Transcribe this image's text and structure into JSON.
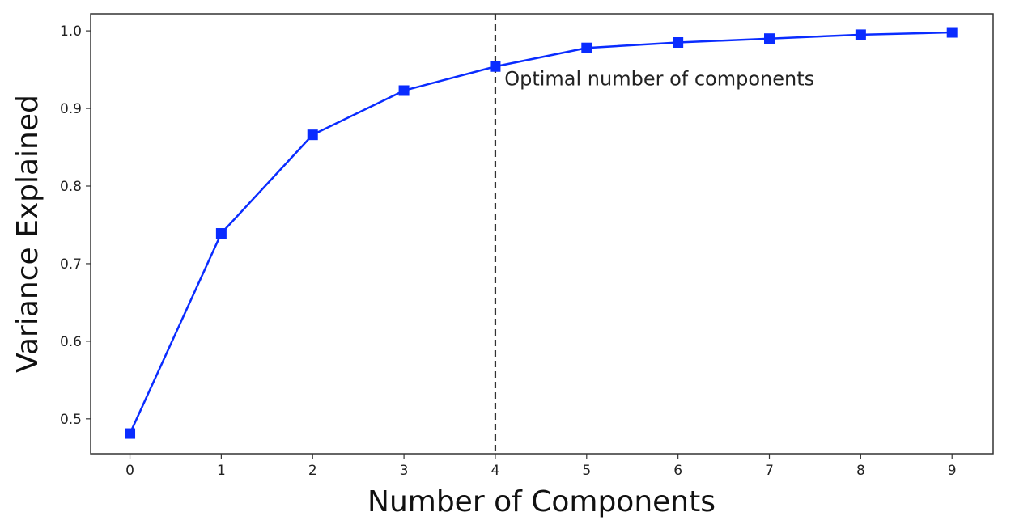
{
  "chart_data": {
    "type": "line",
    "xlabel": "Number of Components",
    "ylabel": "Variance Explained",
    "x": [
      0,
      1,
      2,
      3,
      4,
      5,
      6,
      7,
      8,
      9
    ],
    "series": [
      {
        "values": [
          0.481,
          0.739,
          0.866,
          0.923,
          0.954,
          0.978,
          0.985,
          0.99,
          0.995,
          0.998
        ],
        "color": "#0a2cff",
        "marker": "square"
      }
    ],
    "x_ticks": [
      0,
      1,
      2,
      3,
      4,
      5,
      6,
      7,
      8,
      9
    ],
    "y_ticks": [
      0.5,
      0.6,
      0.7,
      0.8,
      0.9,
      1.0
    ],
    "y_tick_labels": [
      "0.5",
      "0.6",
      "0.7",
      "0.8",
      "0.9",
      "1.0"
    ],
    "xlim": [
      -0.43,
      9.45
    ],
    "ylim": [
      0.455,
      1.022
    ],
    "grid": false,
    "vline": {
      "x": 4,
      "style": "dashed",
      "color": "#333333"
    },
    "annotation": {
      "text": "Optimal number of components",
      "x": 4.1,
      "y": 0.93
    }
  }
}
